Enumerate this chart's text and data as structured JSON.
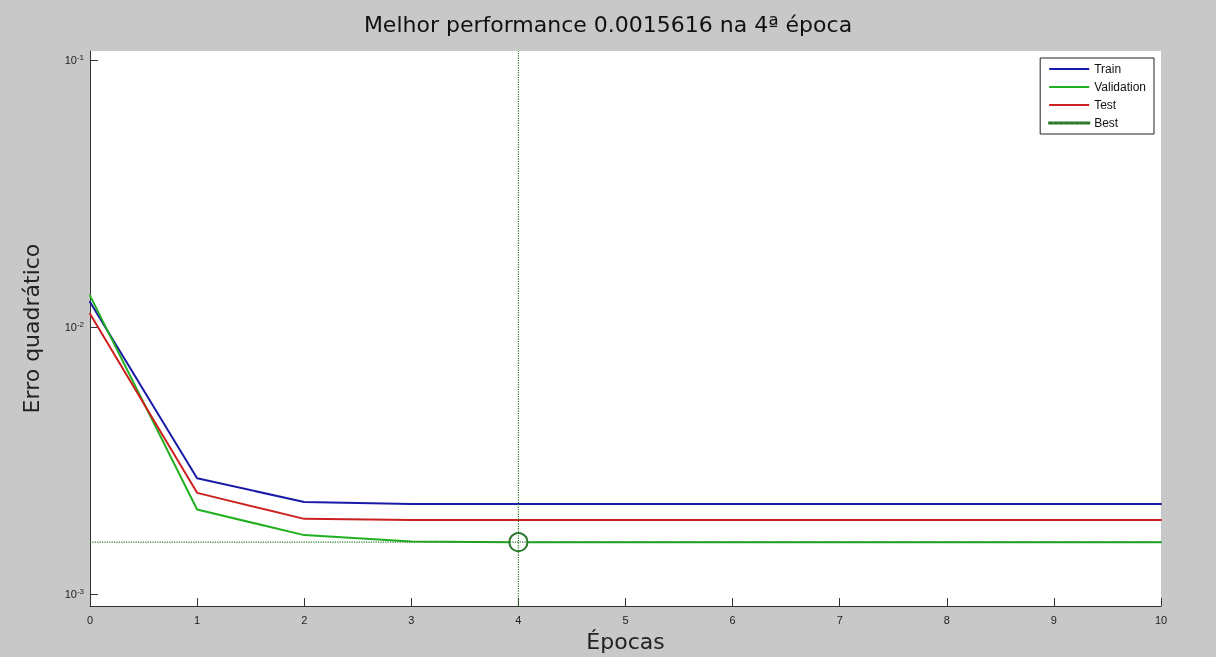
{
  "chart_data": {
    "type": "line",
    "title": "Melhor performance 0.0015616 na 4ª época",
    "xlabel": "Épocas",
    "ylabel": "Erro quadrático",
    "x": [
      0,
      1,
      2,
      3,
      4,
      5,
      6,
      7,
      8,
      9,
      10
    ],
    "series": [
      {
        "name": "Train",
        "color": "#1a1aa8",
        "values": [
          0.0124,
          0.00271,
          0.00221,
          0.00217,
          0.00217,
          0.00217,
          0.00217,
          0.00217,
          0.00217,
          0.00217,
          0.00217
        ]
      },
      {
        "name": "Validation",
        "color": "#20b020",
        "values": [
          0.0131,
          0.00207,
          0.00166,
          0.00157,
          0.0015616,
          0.0015616,
          0.0015616,
          0.0015616,
          0.0015616,
          0.0015616,
          0.0015616
        ]
      },
      {
        "name": "Test",
        "color": "#cc2020",
        "values": [
          0.0112,
          0.00239,
          0.00191,
          0.00189,
          0.00189,
          0.00189,
          0.00189,
          0.00189,
          0.00189,
          0.00189,
          0.00189
        ]
      },
      {
        "name": "Best",
        "type": "scatter",
        "color": "#2a7a2a",
        "marker": "circle",
        "line_style": "dotted",
        "x": [
          4
        ],
        "values": [
          0.0015616
        ]
      }
    ],
    "ref_lines": [
      {
        "axis": "x",
        "value": 4,
        "color": "#2a7a2a",
        "line_style": "dotted"
      },
      {
        "axis": "y",
        "value": 0.0015616,
        "color": "#2a7a2a",
        "line_style": "dotted"
      }
    ],
    "log": "y",
    "xlim": [
      0,
      10
    ],
    "xticks": [
      0,
      1,
      2,
      3,
      4,
      5,
      6,
      7,
      8,
      9,
      10
    ],
    "ylim": [
      0.0009,
      0.108
    ],
    "yticks": [
      {
        "value": 0.001,
        "label": "10$^{-3}$"
      },
      {
        "value": 0.01,
        "label": "10$^{-2}$"
      },
      {
        "value": 0.1,
        "label": "10$^{-1}$"
      }
    ],
    "grid": false,
    "legend": "top right",
    "marker": "none",
    "line_style": "solid"
  }
}
